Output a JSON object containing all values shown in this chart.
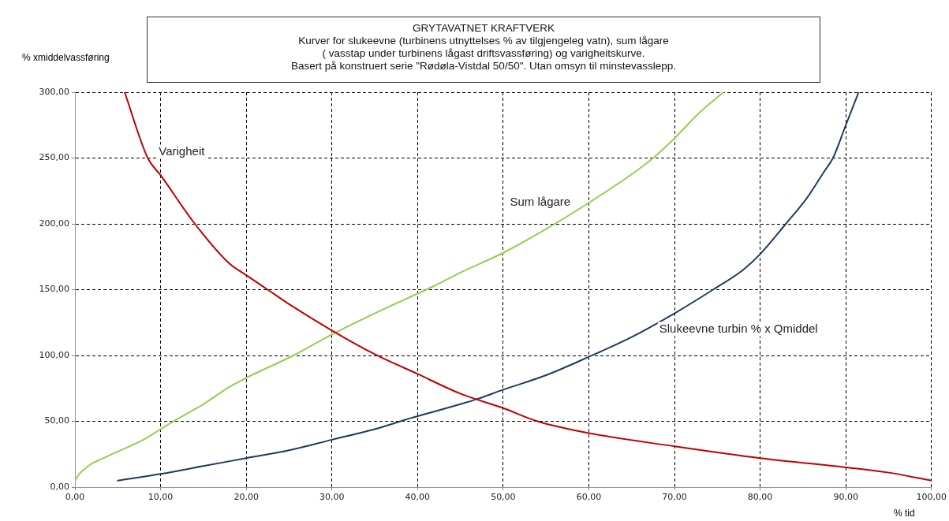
{
  "chart_data": {
    "type": "line",
    "title": "GRYTAVATNET KRAFTVERK",
    "subtitle": "Kurver for slukeevne (turbinens utnyttelses % av tilgjengeleg  vatn), sum lågare\n( vasstap under turbinens lågast driftsvassføring) og varigheitskurve.\nBasert på konstruert serie \"Rødøla-Vistdal 50/50\". Utan omsyn til minstevasslepp.",
    "xlabel": "% tid",
    "ylabel": "% xmiddelvassføring",
    "xlim": [
      0,
      100
    ],
    "ylim": [
      0,
      300
    ],
    "xticks": [
      {
        "value": 0,
        "label": "0,00"
      },
      {
        "value": 10,
        "label": "10,00"
      },
      {
        "value": 20,
        "label": "20,00"
      },
      {
        "value": 30,
        "label": "30,00"
      },
      {
        "value": 40,
        "label": "40,00"
      },
      {
        "value": 50,
        "label": "50,00"
      },
      {
        "value": 60,
        "label": "60,00"
      },
      {
        "value": 70,
        "label": "70,00"
      },
      {
        "value": 80,
        "label": "80,00"
      },
      {
        "value": 90,
        "label": "90,00"
      },
      {
        "value": 100,
        "label": "100,00"
      }
    ],
    "yticks": [
      {
        "value": 0,
        "label": "0,00"
      },
      {
        "value": 50,
        "label": "50,00"
      },
      {
        "value": 100,
        "label": "100,00"
      },
      {
        "value": 150,
        "label": "150,00"
      },
      {
        "value": 200,
        "label": "200,00"
      },
      {
        "value": 250,
        "label": "250,00"
      },
      {
        "value": 300,
        "label": "300,00"
      }
    ],
    "grid": true,
    "legend": false,
    "marker": "none",
    "line_style": "solid",
    "series": [
      {
        "name": "Varigheit",
        "color": "#c00000",
        "x": [
          5.8,
          8.5,
          10,
          14,
          18,
          20,
          22.5,
          25,
          30,
          35,
          40,
          45,
          50,
          54,
          60,
          70,
          80,
          90,
          95,
          100
        ],
        "values": [
          300,
          250,
          237,
          200,
          170,
          161,
          150,
          139,
          119,
          101,
          86,
          71,
          60,
          50,
          41,
          31,
          22,
          15,
          11,
          5
        ]
      },
      {
        "name": "Sum lågare",
        "color": "#92d050",
        "x": [
          0,
          0.5,
          1,
          2,
          3,
          5,
          8,
          10,
          11.5,
          15,
          18,
          20,
          25.5,
          30,
          35,
          40,
          42,
          45,
          50,
          55,
          60,
          65.5,
          67.5,
          70,
          73,
          75.7
        ],
        "values": [
          5,
          10,
          13,
          18,
          21,
          27,
          36,
          44,
          50,
          63,
          76,
          83,
          100,
          116,
          132,
          147,
          153,
          163,
          178,
          196,
          216,
          240,
          250,
          265,
          285,
          300
        ]
      },
      {
        "name": "Slukeevne turbin % x Qmiddel",
        "color": "#1f3b5f",
        "x": [
          5,
          10,
          15,
          20,
          25,
          30,
          35,
          39,
          45,
          47,
          50,
          55,
          60,
          65,
          70,
          74.5,
          78,
          80,
          83,
          85.5,
          87.5,
          88.5,
          90,
          91.5
        ],
        "values": [
          5,
          10,
          16,
          22,
          28,
          36,
          44,
          52,
          63,
          67,
          74,
          85,
          99,
          114,
          132,
          150,
          165,
          177,
          200,
          220,
          240,
          250,
          275,
          300
        ]
      }
    ]
  }
}
